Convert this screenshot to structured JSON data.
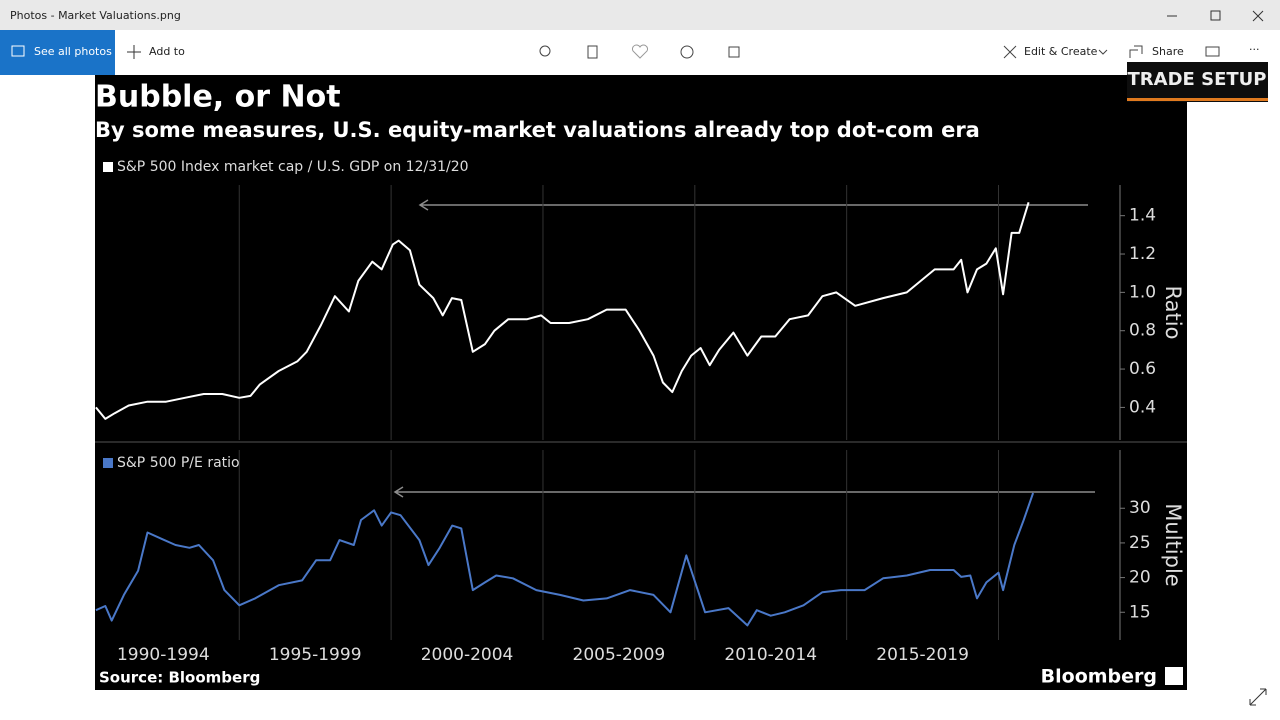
{
  "window": {
    "title": "Photos - Market Valuations.png"
  },
  "toolbar": {
    "see_all": "See all photos",
    "add_to": "Add to",
    "edit_create": "Edit & Create",
    "share": "Share"
  },
  "overlay": "TRADE SETUP",
  "chart_title": "Bubble, or Not",
  "chart_subtitle": "By some measures, U.S. equity-market valuations already top dot-com era",
  "chart_data": [
    {
      "type": "line",
      "ylabel": "Ratio",
      "x": [
        1990.28,
        1990.59,
        1990.9,
        1991.36,
        1991.98,
        1992.59,
        1993.21,
        1993.83,
        1994.44,
        1995,
        1995.37,
        1995.68,
        1996.3,
        1996.91,
        1997.22,
        1997.69,
        1998.15,
        1998.61,
        1998.92,
        1999.38,
        1999.69,
        2000.06,
        2000.25,
        2000.62,
        2000.93,
        2001.39,
        2001.7,
        2002,
        2002.31,
        2002.69,
        2003.09,
        2003.4,
        2003.86,
        2004.48,
        2004.94,
        2005.25,
        2005.86,
        2006.48,
        2007.1,
        2007.72,
        2008.18,
        2008.64,
        2008.95,
        2009.26,
        2009.57,
        2009.88,
        2010.19,
        2010.49,
        2010.8,
        2011.27,
        2011.73,
        2012.19,
        2012.65,
        2013.12,
        2013.73,
        2014.2,
        2014.66,
        2015.28,
        2016.2,
        2016.98,
        2017.9,
        2018.52,
        2018.77,
        2018.98,
        2019.29,
        2019.6,
        2019.91,
        2020.15,
        2020.43,
        2020.68,
        2020.99
      ],
      "series": [
        {
          "name": "S&P 500 Index market cap / U.S. GDP on 12/31/20",
          "color": "#ffffff",
          "values": [
            0.4,
            0.34,
            0.37,
            0.41,
            0.43,
            0.43,
            0.45,
            0.47,
            0.47,
            0.45,
            0.46,
            0.52,
            0.59,
            0.64,
            0.69,
            0.83,
            0.98,
            0.9,
            1.06,
            1.16,
            1.12,
            1.25,
            1.27,
            1.22,
            1.04,
            0.97,
            0.88,
            0.97,
            0.96,
            0.69,
            0.73,
            0.8,
            0.86,
            0.86,
            0.88,
            0.84,
            0.84,
            0.86,
            0.91,
            0.91,
            0.8,
            0.67,
            0.53,
            0.48,
            0.59,
            0.67,
            0.71,
            0.62,
            0.7,
            0.79,
            0.67,
            0.77,
            0.77,
            0.86,
            0.88,
            0.98,
            1.0,
            0.93,
            0.97,
            1.0,
            1.12,
            1.12,
            1.17,
            1.0,
            1.12,
            1.15,
            1.23,
            0.99,
            1.31,
            1.31,
            1.47
          ]
        }
      ],
      "xlim": [
        1990.25,
        2024
      ],
      "ylim": [
        0.23,
        1.56
      ],
      "yticks": [
        0.4,
        0.6,
        0.8,
        {
          "value": 1,
          "label": "1.0"
        },
        1.2,
        1.4
      ],
      "xgrid": [
        1995,
        2000,
        2005,
        2010,
        2015,
        2020
      ]
    },
    {
      "type": "line",
      "ylabel": "Multiple",
      "x": [
        1990.28,
        1990.59,
        1990.8,
        1991.2,
        1991.67,
        1991.98,
        1992.44,
        1992.9,
        1993.36,
        1993.67,
        1994.14,
        1994.51,
        1995,
        1995.52,
        1996.3,
        1997.07,
        1997.53,
        1997.99,
        1998.3,
        1998.77,
        1999.01,
        1999.44,
        1999.69,
        2000,
        2000.31,
        2000.93,
        2001.23,
        2001.6,
        2002.01,
        2002.31,
        2002.69,
        2003.09,
        2003.46,
        2004.01,
        2004.78,
        2005.56,
        2006.33,
        2007.1,
        2007.87,
        2008.64,
        2009.2,
        2009.72,
        2010.34,
        2011.11,
        2011.73,
        2012.04,
        2012.5,
        2012.96,
        2013.58,
        2014.2,
        2014.81,
        2015.59,
        2016.2,
        2016.98,
        2017.75,
        2018.52,
        2018.77,
        2019.07,
        2019.29,
        2019.6,
        2020,
        2020.15,
        2020.52,
        2020.83,
        2021.14
      ],
      "series": [
        {
          "name": "S&P 500 P/E ratio",
          "color": "#4a78c8",
          "values": [
            15.3,
            15.9,
            13.8,
            17.5,
            21.0,
            26.5,
            25.6,
            24.7,
            24.3,
            24.7,
            22.5,
            18.2,
            16.0,
            17.0,
            18.9,
            19.6,
            22.5,
            22.5,
            25.4,
            24.7,
            28.3,
            29.7,
            27.5,
            29.4,
            29.0,
            25.4,
            21.8,
            24.3,
            27.5,
            27.1,
            18.2,
            19.3,
            20.3,
            19.9,
            18.2,
            17.5,
            16.7,
            17.0,
            18.2,
            17.5,
            15.0,
            23.2,
            15.0,
            15.6,
            13.1,
            15.3,
            14.5,
            15.0,
            16.0,
            17.9,
            18.2,
            18.2,
            19.9,
            20.3,
            21.1,
            21.1,
            20.1,
            20.3,
            17.0,
            19.3,
            20.7,
            18.2,
            24.7,
            28.3,
            32.2
          ]
        }
      ],
      "xlim": [
        1990.25,
        2024
      ],
      "ylim": [
        11,
        38.4
      ],
      "yticks": [
        15,
        20,
        25,
        30
      ],
      "xticks": [
        {
          "value": 1992.5,
          "label": "1990-1994"
        },
        {
          "value": 1997.5,
          "label": "1995-1999"
        },
        {
          "value": 2002.5,
          "label": "2000-2004"
        },
        {
          "value": 2007.5,
          "label": "2005-2009"
        },
        {
          "value": 2012.5,
          "label": "2010-2014"
        },
        {
          "value": 2017.5,
          "label": "2015-2019"
        }
      ],
      "xgrid": [
        1995,
        2000,
        2005,
        2010,
        2015,
        2020
      ]
    }
  ],
  "source": "Source: Bloomberg",
  "brand": "Bloomberg"
}
